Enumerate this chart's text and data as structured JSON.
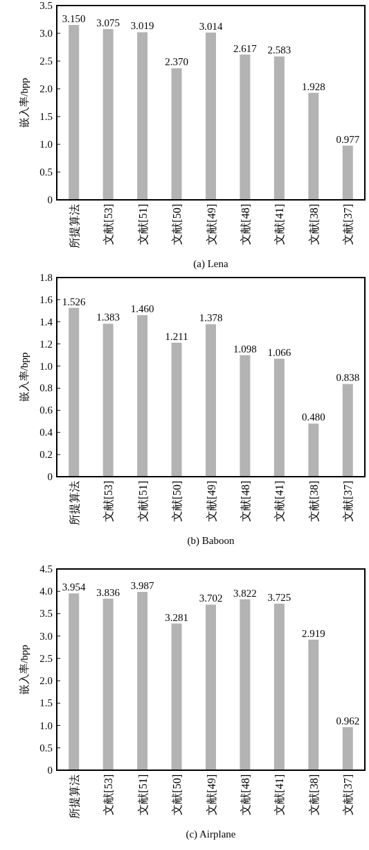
{
  "chart_data": [
    {
      "type": "bar",
      "title": "(a) Lena",
      "ylabel": "嵌入率/bpp",
      "categories": [
        "所提算法",
        "文献[53]",
        "文献[51]",
        "文献[50]",
        "文献[49]",
        "文献[48]",
        "文献[41]",
        "文献[38]",
        "文献[37]"
      ],
      "values": [
        3.15,
        3.075,
        3.019,
        2.37,
        3.014,
        2.617,
        2.583,
        1.928,
        0.977
      ],
      "value_labels": [
        "3.150",
        "3.075",
        "3.019",
        "2.370",
        "3.014",
        "2.617",
        "2.583",
        "1.928",
        "0.977"
      ],
      "color": "#b3b3b3",
      "ylim": [
        0,
        3.5
      ],
      "yticks": [
        0,
        0.5,
        {
          "value": 1,
          "label": "1.0"
        },
        1.5,
        {
          "value": 2,
          "label": "2.0"
        },
        2.5,
        {
          "value": 3,
          "label": "3.0"
        },
        3.5
      ]
    },
    {
      "type": "bar",
      "title": "(b) Baboon",
      "ylabel": "嵌入率/bpp",
      "categories": [
        "所提算法",
        "文献[53]",
        "文献[51]",
        "文献[50]",
        "文献[49]",
        "文献[48]",
        "文献[41]",
        "文献[38]",
        "文献[37]"
      ],
      "values": [
        1.526,
        1.383,
        1.46,
        1.211,
        1.378,
        1.098,
        1.066,
        0.48,
        0.838
      ],
      "value_labels": [
        "1.526",
        "1.383",
        "1.460",
        "1.211",
        "1.378",
        "1.098",
        "1.066",
        "0.480",
        "0.838"
      ],
      "color": "#b3b3b3",
      "ylim": [
        0,
        1.8
      ],
      "yticks": [
        0,
        0.2,
        0.4,
        0.6,
        0.8,
        {
          "value": 1,
          "label": "1.0"
        },
        1.2,
        1.4,
        1.6,
        1.8
      ]
    },
    {
      "type": "bar",
      "title": "(c) Airplane",
      "ylabel": "嵌入率/bpp",
      "categories": [
        "所提算法",
        "文献[53]",
        "文献[51]",
        "文献[50]",
        "文献[49]",
        "文献[48]",
        "文献[41]",
        "文献[38]",
        "文献[37]"
      ],
      "values": [
        3.954,
        3.836,
        3.987,
        3.281,
        3.702,
        3.822,
        3.725,
        2.919,
        0.962
      ],
      "value_labels": [
        "3.954",
        "3.836",
        "3.987",
        "3.281",
        "3.702",
        "3.822",
        "3.725",
        "2.919",
        "0.962"
      ],
      "color": "#b3b3b3",
      "ylim": [
        0,
        4.5
      ],
      "yticks": [
        0,
        0.5,
        {
          "value": 1,
          "label": "1.0"
        },
        1.5,
        {
          "value": 2,
          "label": "2.0"
        },
        2.5,
        {
          "value": 3,
          "label": "3.0"
        },
        3.5,
        {
          "value": 4,
          "label": "4.0"
        },
        4.5
      ]
    }
  ]
}
